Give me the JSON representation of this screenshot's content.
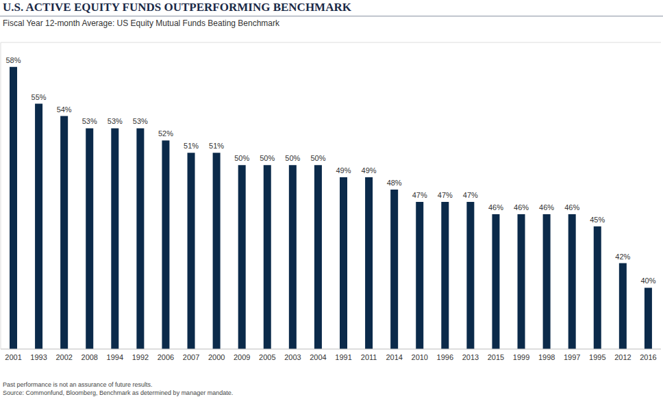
{
  "chart_data": {
    "type": "bar",
    "title": "U.S. ACTIVE EQUITY FUNDS OUTPERFORMING BENCHMARK",
    "subtitle": "Fiscal Year 12-month Average: US Equity Mutual Funds Beating Benchmark",
    "categories": [
      "2001",
      "1993",
      "2002",
      "2008",
      "1994",
      "1992",
      "2006",
      "2007",
      "2000",
      "2009",
      "2005",
      "2003",
      "2004",
      "1991",
      "2011",
      "2014",
      "2010",
      "1996",
      "2013",
      "2015",
      "1999",
      "1998",
      "1997",
      "1995",
      "2012",
      "2016"
    ],
    "values": [
      58,
      55,
      54,
      53,
      53,
      53,
      52,
      51,
      51,
      50,
      50,
      50,
      50,
      49,
      49,
      48,
      47,
      47,
      47,
      46,
      46,
      46,
      46,
      45,
      42,
      40
    ],
    "value_labels": [
      "58%",
      "55%",
      "54%",
      "53%",
      "53%",
      "53%",
      "52%",
      "51%",
      "51%",
      "50%",
      "50%",
      "50%",
      "50%",
      "49%",
      "49%",
      "48%",
      "47%",
      "47%",
      "47%",
      "46%",
      "46%",
      "46%",
      "46%",
      "45%",
      "42%",
      "40%"
    ],
    "data_labels": true,
    "color": "#0b2a4a",
    "ylim": [
      35,
      60
    ],
    "yticks": [
      35,
      40,
      45,
      50,
      55,
      60
    ],
    "grid": true,
    "tick_labels": "x",
    "annotations": [
      "Past performance is not an assurance of future results.",
      "Source: Commonfund, Bloomberg, Benchmark as determined by manager mandate."
    ]
  }
}
